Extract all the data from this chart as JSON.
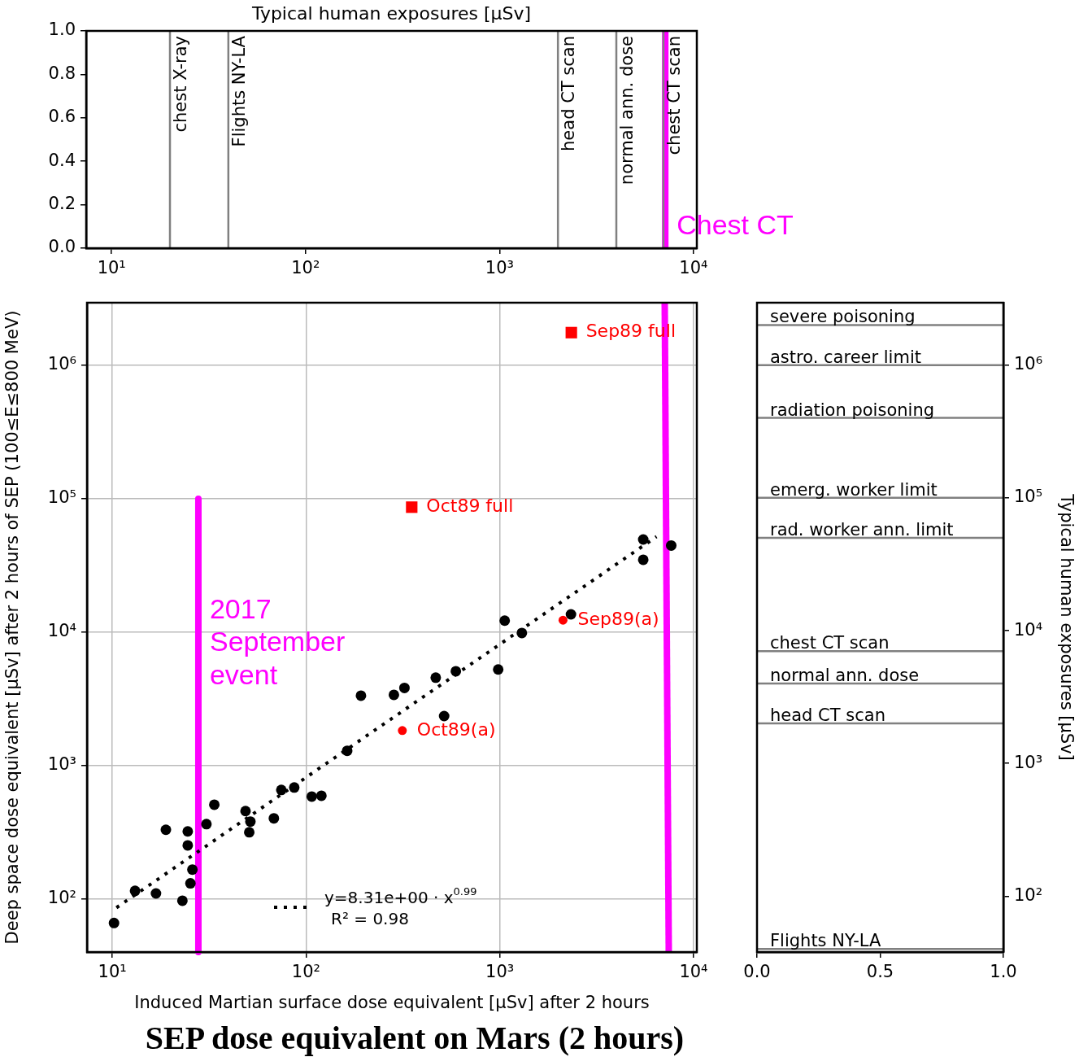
{
  "chart_data": [
    {
      "type": "line",
      "title": "Typical human exposures [μSv]",
      "xlim": [
        7.4,
        10400
      ],
      "ylim": [
        0,
        1
      ],
      "log": "x",
      "grid": false,
      "xticks": [
        {
          "value": 10,
          "label": "10¹"
        },
        {
          "value": 100,
          "label": "10²"
        },
        {
          "value": 1000,
          "label": "10³"
        },
        {
          "value": 10000,
          "label": "10⁴"
        }
      ],
      "yticks": [
        {
          "value": 0,
          "label": "0.0"
        },
        {
          "value": 0.2,
          "label": "0.2"
        },
        {
          "value": 0.4,
          "label": "0.4"
        },
        {
          "value": 0.6,
          "label": "0.6"
        },
        {
          "value": 0.8,
          "label": "0.8"
        },
        {
          "value": 1,
          "label": "1.0"
        }
      ],
      "series": [
        {
          "color": "#ff00ff",
          "x": [
            7150,
            7150
          ],
          "values": [
            0,
            1
          ]
        }
      ],
      "ref_lines": [
        {
          "axis": "x",
          "value": 20,
          "label": "chest X-ray",
          "color": "#808080"
        },
        {
          "axis": "x",
          "value": 40,
          "label": "Flights NY-LA",
          "color": "#808080"
        },
        {
          "axis": "x",
          "value": 2000,
          "label": "head CT scan",
          "color": "#808080"
        },
        {
          "axis": "x",
          "value": 4000,
          "label": "normal ann. dose",
          "color": "#808080"
        },
        {
          "axis": "x",
          "value": 7000,
          "label": "chest CT scan",
          "color": "#808080"
        }
      ],
      "annotations": [
        {
          "text": "Chest CT",
          "x": 7150,
          "y": 0.1
        }
      ]
    },
    {
      "type": "scatter",
      "title": "SEP dose equivalent on Mars (2 hours)",
      "xlabel": "Induced Martian surface dose equivalent [μSv] after 2 hours",
      "ylabel": "Deep space dose equivalent [μSv] after 2 hours of SEP (100≤E≤800 MeV)",
      "xlim": [
        7.4,
        10400
      ],
      "ylim": [
        40,
        2950000
      ],
      "log": "xy",
      "grid": true,
      "legend": "bottom",
      "xticks": [
        {
          "value": 10,
          "label": "10¹"
        },
        {
          "value": 100,
          "label": "10²"
        },
        {
          "value": 1000,
          "label": "10³"
        },
        {
          "value": 10000,
          "label": "10⁴"
        }
      ],
      "yticks": [
        {
          "value": 100,
          "label": "10²"
        },
        {
          "value": 1000,
          "label": "10³"
        },
        {
          "value": 10000,
          "label": "10⁴"
        },
        {
          "value": 100000,
          "label": "10⁵"
        },
        {
          "value": 1000000,
          "label": "10⁶"
        }
      ],
      "series": [
        {
          "marker": "circle",
          "color": "#000000",
          "x": [
            10.2,
            13.1,
            16.8,
            18.9,
            23,
            24.5,
            24.5,
            25.3,
            25.9,
            30.6,
            33.6,
            48.7,
            51.6,
            50.9,
            68.2,
            74.5,
            86.9,
            107,
            120,
            163,
            192,
            284,
            322,
            467,
            516,
            593,
            981,
            1060,
            1300,
            2330,
            5500,
            5500,
            7670
          ],
          "values": [
            66,
            115,
            110,
            330,
            97,
            321,
            252,
            131,
            166,
            364,
            509,
            456,
            380,
            316,
            402,
            656,
            684,
            586,
            594,
            1290,
            3340,
            3390,
            3820,
            4560,
            2350,
            5090,
            5250,
            12200,
            9860,
            13600,
            49500,
            34900,
            44600
          ]
        },
        {
          "marker": "circle",
          "color": "#ff0000",
          "x": [
            314,
            2120
          ],
          "values": [
            1830,
            12300
          ]
        },
        {
          "marker": "square",
          "color": "#ff0000",
          "x": [
            351,
            2340
          ],
          "values": [
            86500,
            1760000
          ]
        },
        {
          "type": "line",
          "name": "y=8.31e+00 · x$^{0.99}$",
          "line_style": "dotted",
          "marker": "none",
          "color": "#000000",
          "x": [
            10.5,
            6440
          ],
          "values": [
            86,
            52000
          ]
        },
        {
          "type": "line",
          "line_style": "solid",
          "marker": "none",
          "color": "#ff00ff",
          "x": [
            27.8,
            27.8
          ],
          "values": [
            100000,
            40
          ]
        },
        {
          "type": "line",
          "line_style": "solid",
          "marker": "none",
          "color": "#ff00ff",
          "x": [
            7100,
            7450
          ],
          "values": [
            2950000,
            40
          ]
        }
      ],
      "annotations": [
        {
          "text": "Oct89(a)",
          "x": 314,
          "y": 1830
        },
        {
          "text": "Sep89(a)",
          "x": 2120,
          "y": 12300
        },
        {
          "text": "Oct89 full",
          "x": 351,
          "y": 86500
        },
        {
          "text": "Sep89 full",
          "x": 2340,
          "y": 1760000
        },
        {
          "text": "2017\nSeptember\nevent",
          "x": 27.8,
          "y": 8200
        },
        "R² = 0.98"
      ]
    },
    {
      "type": "line",
      "ylabel": "Typical human exposures [μSv]",
      "xlim": [
        0,
        1
      ],
      "ylim": [
        38,
        2950000
      ],
      "log": "y",
      "grid": false,
      "xticks": [
        {
          "value": 0,
          "label": "0.0"
        },
        {
          "value": 0.5,
          "label": "0.5"
        },
        {
          "value": 1,
          "label": "1.0"
        }
      ],
      "yticks": [
        {
          "value": 100,
          "label": "10²"
        },
        {
          "value": 1000,
          "label": "10³"
        },
        {
          "value": 10000,
          "label": "10⁴"
        },
        {
          "value": 100000,
          "label": "10⁵"
        },
        {
          "value": 1000000,
          "label": "10⁶"
        }
      ],
      "ref_lines": [
        {
          "axis": "y",
          "value": 2000000,
          "label": "severe poisoning",
          "color": "#808080"
        },
        {
          "axis": "y",
          "value": 1000000,
          "label": "astro. career limit",
          "color": "#808080"
        },
        {
          "axis": "y",
          "value": 400000,
          "label": "radiation poisoning",
          "color": "#808080"
        },
        {
          "axis": "y",
          "value": 100000,
          "label": "emerg. worker limit",
          "color": "#808080"
        },
        {
          "axis": "y",
          "value": 50000,
          "label": "rad. worker ann. limit",
          "color": "#808080"
        },
        {
          "axis": "y",
          "value": 7000,
          "label": "chest CT scan",
          "color": "#808080"
        },
        {
          "axis": "y",
          "value": 4000,
          "label": "normal ann. dose",
          "color": "#808080"
        },
        {
          "axis": "y",
          "value": 2000,
          "label": "head CT scan",
          "color": "#808080"
        },
        {
          "axis": "y",
          "value": 40,
          "label": "Flights NY-LA",
          "color": "#808080"
        }
      ]
    }
  ]
}
